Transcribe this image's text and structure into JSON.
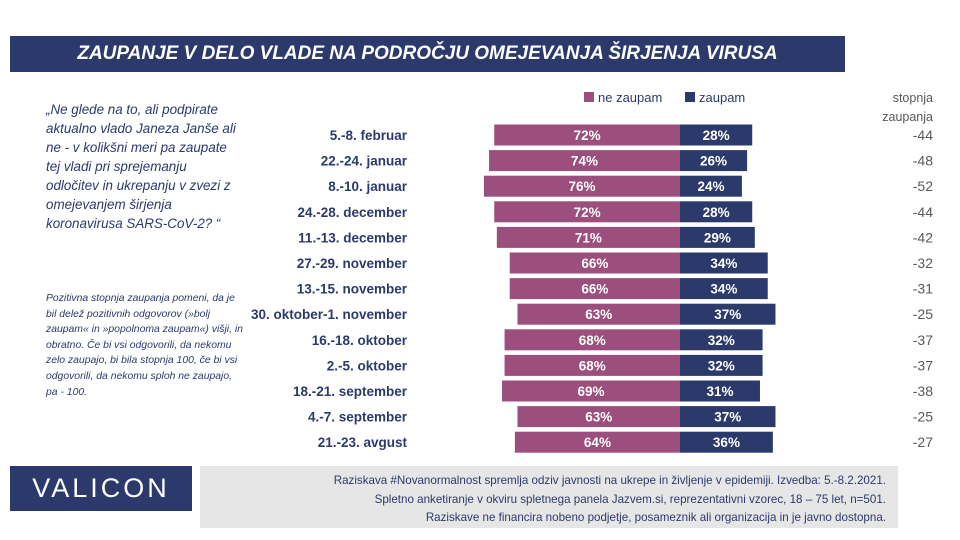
{
  "header": {
    "title": "ZAUPANJE V DELO VLADE NA PODROČJU OMEJEVANJA ŠIRJENJA VIRUSA"
  },
  "question": "„Ne glede na to, ali podpirate aktualno vlado Janeza Janše ali ne - v kolikšni meri pa zaupate tej vladi pri sprejemanju odločitev in ukrepanju v zvezi z omejevanjem širjenja koronavirusa SARS-CoV-2? “",
  "note": "Pozitivna stopnja zaupanja pomeni, da je bil delež pozitivnih odgovorov (»bolj zaupam« in »popolnoma zaupam«) višji, in obratno. Če bi vsi odgovorili, da nekomu zelo zaupajo, bi bila stopnja 100, če bi vsi odgovorili, da nekomu sploh ne zaupajo, pa - 100.",
  "logo": "VALICON",
  "footer": {
    "line1": "Raziskava #Novanormalnost spremlja odziv javnosti na ukrepe in življenje v epidemiji. Izvedba: 5.-8.2.2021.",
    "line2": "Spletno anketiranje v okviru spletnega panela Jazvem.si, reprezentativni vzorec, 18 – 75 let, n=501.",
    "line3": "Raziskave ne financira nobeno podjetje, posameznik ali organizacija in je javno dostopna."
  },
  "chart_data": {
    "type": "bar",
    "orientation": "horizontal-diverging",
    "categories": [
      "5.-8. februar",
      "22.-24. januar",
      "8.-10. januar",
      "24.-28. december",
      "11.-13. december",
      "27.-29. november",
      "13.-15. november",
      "30. oktober-1. november",
      "16.-18. oktober",
      "2.-5. oktober",
      "18.-21. september",
      "4.-7. september",
      "21.-23. avgust"
    ],
    "series": [
      {
        "name": "ne zaupam",
        "color": "#9c4f7c",
        "values": [
          72,
          74,
          76,
          72,
          71,
          66,
          66,
          63,
          68,
          68,
          69,
          63,
          64
        ]
      },
      {
        "name": "zaupam",
        "color": "#2c3a6b",
        "values": [
          28,
          26,
          24,
          28,
          29,
          34,
          34,
          37,
          32,
          32,
          31,
          37,
          36
        ]
      }
    ],
    "stopnja_label": "stopnja zaupanja",
    "stopnja": [
      "-44",
      "-48",
      "-52",
      "-44",
      "-42",
      "-32",
      "-31",
      "-25",
      "-37",
      "-37",
      "-38",
      "-25",
      "-27"
    ],
    "value_suffix": "%",
    "legend_position": "top",
    "colors": {
      "label": "#2c3a6b",
      "stopnja": "#595959",
      "value_text": "#ffffff"
    }
  }
}
